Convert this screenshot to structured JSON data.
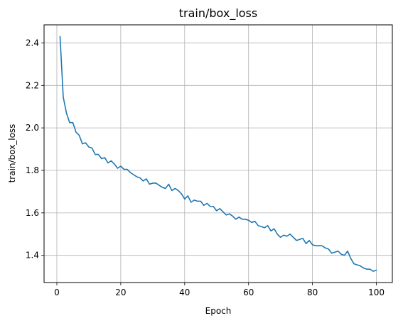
{
  "chart_data": {
    "type": "line",
    "title": "train/box_loss",
    "xlabel": "Epoch",
    "ylabel": "train/box_loss",
    "xlim": [
      -4,
      105
    ],
    "ylim": [
      1.272,
      2.485
    ],
    "xticks": [
      0,
      20,
      40,
      60,
      80,
      100
    ],
    "yticks": [
      1.4,
      1.6,
      1.8,
      2.0,
      2.2,
      2.4
    ],
    "xtick_labels": [
      "0",
      "20",
      "40",
      "60",
      "80",
      "100"
    ],
    "ytick_labels": [
      "1.4",
      "1.6",
      "1.8",
      "2.0",
      "2.2",
      "2.4"
    ],
    "grid": true,
    "line_color": "#1f77b4",
    "series": [
      {
        "x": [
          1,
          2,
          3,
          4,
          5,
          6,
          7,
          8,
          9,
          10,
          11,
          12,
          13,
          14,
          15,
          16,
          17,
          18,
          19,
          20,
          21,
          22,
          23,
          24,
          25,
          26,
          27,
          28,
          29,
          30,
          31,
          32,
          33,
          34,
          35,
          36,
          37,
          38,
          39,
          40,
          41,
          42,
          43,
          44,
          45,
          46,
          47,
          48,
          49,
          50,
          51,
          52,
          53,
          54,
          55,
          56,
          57,
          58,
          59,
          60,
          61,
          62,
          63,
          64,
          65,
          66,
          67,
          68,
          69,
          70,
          71,
          72,
          73,
          74,
          75,
          76,
          77,
          78,
          79,
          80,
          81,
          82,
          83,
          84,
          85,
          86,
          87,
          88,
          89,
          90,
          91,
          92,
          93,
          94,
          95,
          96,
          97,
          98,
          99,
          100
        ],
        "values": [
          2.43,
          2.145,
          2.07,
          2.025,
          2.025,
          1.98,
          1.965,
          1.925,
          1.93,
          1.91,
          1.905,
          1.875,
          1.875,
          1.855,
          1.86,
          1.835,
          1.845,
          1.83,
          1.81,
          1.82,
          1.805,
          1.805,
          1.79,
          1.78,
          1.77,
          1.765,
          1.75,
          1.76,
          1.735,
          1.74,
          1.74,
          1.73,
          1.72,
          1.715,
          1.735,
          1.705,
          1.715,
          1.705,
          1.69,
          1.665,
          1.68,
          1.65,
          1.66,
          1.655,
          1.655,
          1.635,
          1.645,
          1.63,
          1.63,
          1.61,
          1.62,
          1.605,
          1.59,
          1.595,
          1.585,
          1.57,
          1.58,
          1.57,
          1.57,
          1.565,
          1.555,
          1.56,
          1.54,
          1.535,
          1.53,
          1.54,
          1.515,
          1.525,
          1.5,
          1.485,
          1.495,
          1.49,
          1.5,
          1.485,
          1.47,
          1.475,
          1.48,
          1.455,
          1.47,
          1.45,
          1.445,
          1.445,
          1.445,
          1.435,
          1.43,
          1.41,
          1.415,
          1.42,
          1.405,
          1.4,
          1.42,
          1.385,
          1.36,
          1.355,
          1.35,
          1.34,
          1.335,
          1.335,
          1.325,
          1.33
        ]
      }
    ]
  }
}
